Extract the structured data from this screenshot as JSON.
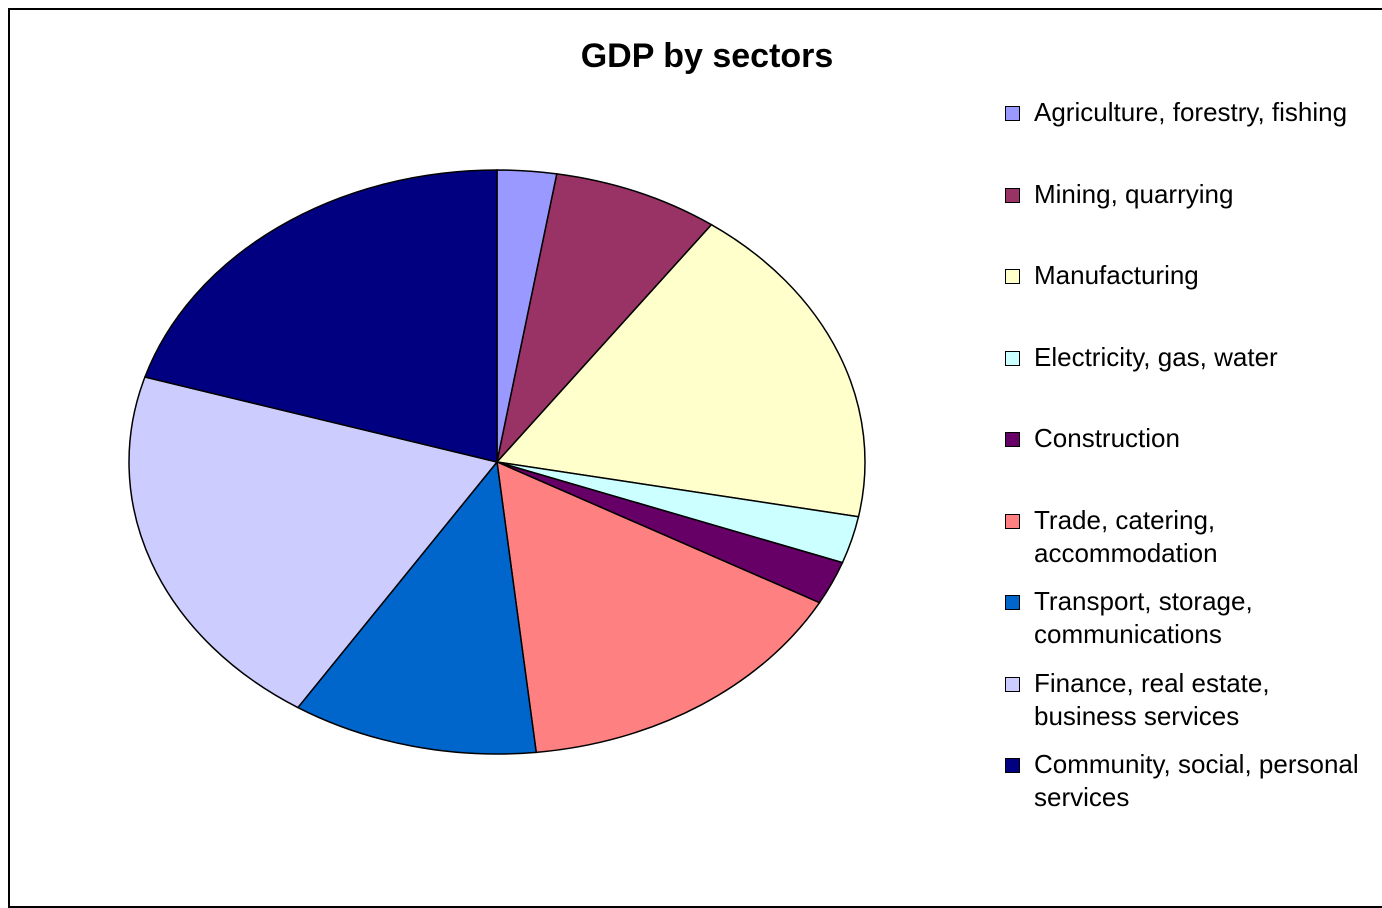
{
  "chart_data": {
    "type": "pie",
    "title": "GDP by sectors",
    "categories": [
      "Agriculture, forestry, fishing",
      "Mining, quarrying",
      "Manufacturing",
      "Electricity, gas, water",
      "Construction",
      "Trade, catering, accommodation",
      "Transport, storage, communications",
      "Finance, real estate, business services",
      "Community, social, personal services"
    ],
    "values": [
      2.6,
      7.3,
      18.1,
      2.6,
      2.4,
      15.3,
      10.8,
      20.6,
      20.3
    ],
    "colors": [
      "#9999ff",
      "#993366",
      "#ffffcc",
      "#ccffff",
      "#660066",
      "#ff8080",
      "#0066cc",
      "#ccccff",
      "#000080"
    ],
    "legend": "right"
  }
}
